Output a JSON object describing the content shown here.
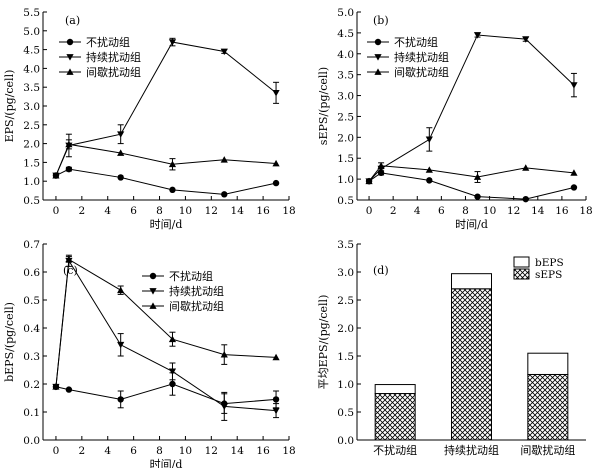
{
  "chart_data": [
    {
      "panel": "(a)",
      "type": "line",
      "xlabel": "时间/d",
      "ylabel": "EPS/(pg/cell)",
      "xlim": [
        -1,
        18
      ],
      "ylim": [
        0.5,
        5.5
      ],
      "xticks": [
        0,
        2,
        4,
        6,
        8,
        10,
        12,
        14,
        16,
        18
      ],
      "yticks": [
        0.5,
        1.0,
        1.5,
        2.0,
        2.5,
        3.0,
        3.5,
        4.0,
        4.5,
        5.0,
        5.5
      ],
      "legend": "top-left",
      "series": [
        {
          "name": "不扰动组",
          "marker": "circle",
          "x": [
            0,
            1,
            5,
            9,
            13,
            17
          ],
          "y": [
            1.15,
            1.32,
            1.1,
            0.77,
            0.65,
            0.95
          ],
          "err": [
            0,
            0.05,
            0,
            0,
            0,
            0
          ]
        },
        {
          "name": "持续扰动组",
          "marker": "triangle-down",
          "x": [
            0,
            1,
            5,
            9,
            13,
            17
          ],
          "y": [
            1.15,
            1.95,
            2.25,
            4.7,
            4.45,
            3.35
          ],
          "err": [
            0,
            0.3,
            0.25,
            0.1,
            0.05,
            0.28
          ]
        },
        {
          "name": "间歇扰动组",
          "marker": "triangle-up",
          "x": [
            0,
            1,
            5,
            9,
            13,
            17
          ],
          "y": [
            1.15,
            1.98,
            1.75,
            1.45,
            1.57,
            1.47
          ],
          "err": [
            0,
            0.12,
            0,
            0.15,
            0,
            0
          ]
        }
      ]
    },
    {
      "panel": "(b)",
      "type": "line",
      "xlabel": "时间/d",
      "ylabel": "sEPS/(pg/cell)",
      "xlim": [
        -1,
        18
      ],
      "ylim": [
        0.5,
        5.0
      ],
      "xticks": [
        0,
        2,
        4,
        6,
        8,
        10,
        12,
        14,
        16,
        18
      ],
      "yticks": [
        0.5,
        1.0,
        1.5,
        2.0,
        2.5,
        3.0,
        3.5,
        4.0,
        4.5,
        5.0
      ],
      "legend": "top-left",
      "series": [
        {
          "name": "不扰动组",
          "marker": "circle",
          "x": [
            0,
            1,
            5,
            9,
            13,
            17
          ],
          "y": [
            0.95,
            1.15,
            0.97,
            0.58,
            0.52,
            0.8
          ],
          "err": [
            0,
            0.05,
            0,
            0,
            0,
            0
          ]
        },
        {
          "name": "持续扰动组",
          "marker": "triangle-down",
          "x": [
            0,
            1,
            5,
            9,
            13,
            17
          ],
          "y": [
            0.95,
            1.25,
            1.95,
            4.45,
            4.35,
            3.25
          ],
          "err": [
            0,
            0,
            0.28,
            0.05,
            0.05,
            0.28
          ]
        },
        {
          "name": "间歇扰动组",
          "marker": "triangle-up",
          "x": [
            0,
            1,
            5,
            9,
            13,
            17
          ],
          "y": [
            0.95,
            1.32,
            1.22,
            1.05,
            1.27,
            1.15
          ],
          "err": [
            0,
            0.07,
            0,
            0.13,
            0,
            0
          ]
        }
      ]
    },
    {
      "panel": "(c)",
      "type": "line",
      "xlabel": "时间/d",
      "ylabel": "bEPS/(pg/cell)",
      "xlim": [
        -1,
        18
      ],
      "ylim": [
        0,
        0.7
      ],
      "xticks": [
        0,
        2,
        4,
        6,
        8,
        10,
        12,
        14,
        16,
        18
      ],
      "yticks": [
        0,
        0.1,
        0.2,
        0.3,
        0.4,
        0.5,
        0.6,
        0.7
      ],
      "legend": "top-center",
      "series": [
        {
          "name": "不扰动组",
          "marker": "circle",
          "x": [
            0,
            1,
            5,
            9,
            13,
            17
          ],
          "y": [
            0.19,
            0.18,
            0.145,
            0.2,
            0.13,
            0.145
          ],
          "err": [
            0,
            0,
            0.03,
            0.04,
            0.035,
            0.03
          ]
        },
        {
          "name": "持续扰动组",
          "marker": "triangle-down",
          "x": [
            0,
            1,
            5,
            9,
            13,
            17
          ],
          "y": [
            0.19,
            0.64,
            0.34,
            0.245,
            0.12,
            0.105
          ],
          "err": [
            0,
            0.02,
            0.04,
            0.03,
            0.05,
            0.025
          ]
        },
        {
          "name": "间歇扰动组",
          "marker": "triangle-up",
          "x": [
            0,
            1,
            5,
            9,
            13,
            17
          ],
          "y": [
            0.19,
            0.645,
            0.535,
            0.36,
            0.305,
            0.295
          ],
          "err": [
            0,
            0.01,
            0.015,
            0.025,
            0.035,
            0
          ]
        }
      ]
    },
    {
      "panel": "(d)",
      "type": "bar",
      "stacked": true,
      "xlabel": "",
      "ylabel": "平均EPS/(pg/cell)",
      "ylim": [
        0,
        3.5
      ],
      "yticks": [
        0,
        0.5,
        1.0,
        1.5,
        2.0,
        2.5,
        3.0,
        3.5
      ],
      "categories": [
        "不扰动组",
        "持续扰动组",
        "间歇扰动组"
      ],
      "legend": "top-right",
      "series": [
        {
          "name": "sEPS",
          "fill": "crosshatch",
          "values": [
            0.83,
            2.7,
            1.17
          ]
        },
        {
          "name": "bEPS",
          "fill": "white",
          "values": [
            0.16,
            0.27,
            0.38
          ]
        }
      ]
    }
  ]
}
